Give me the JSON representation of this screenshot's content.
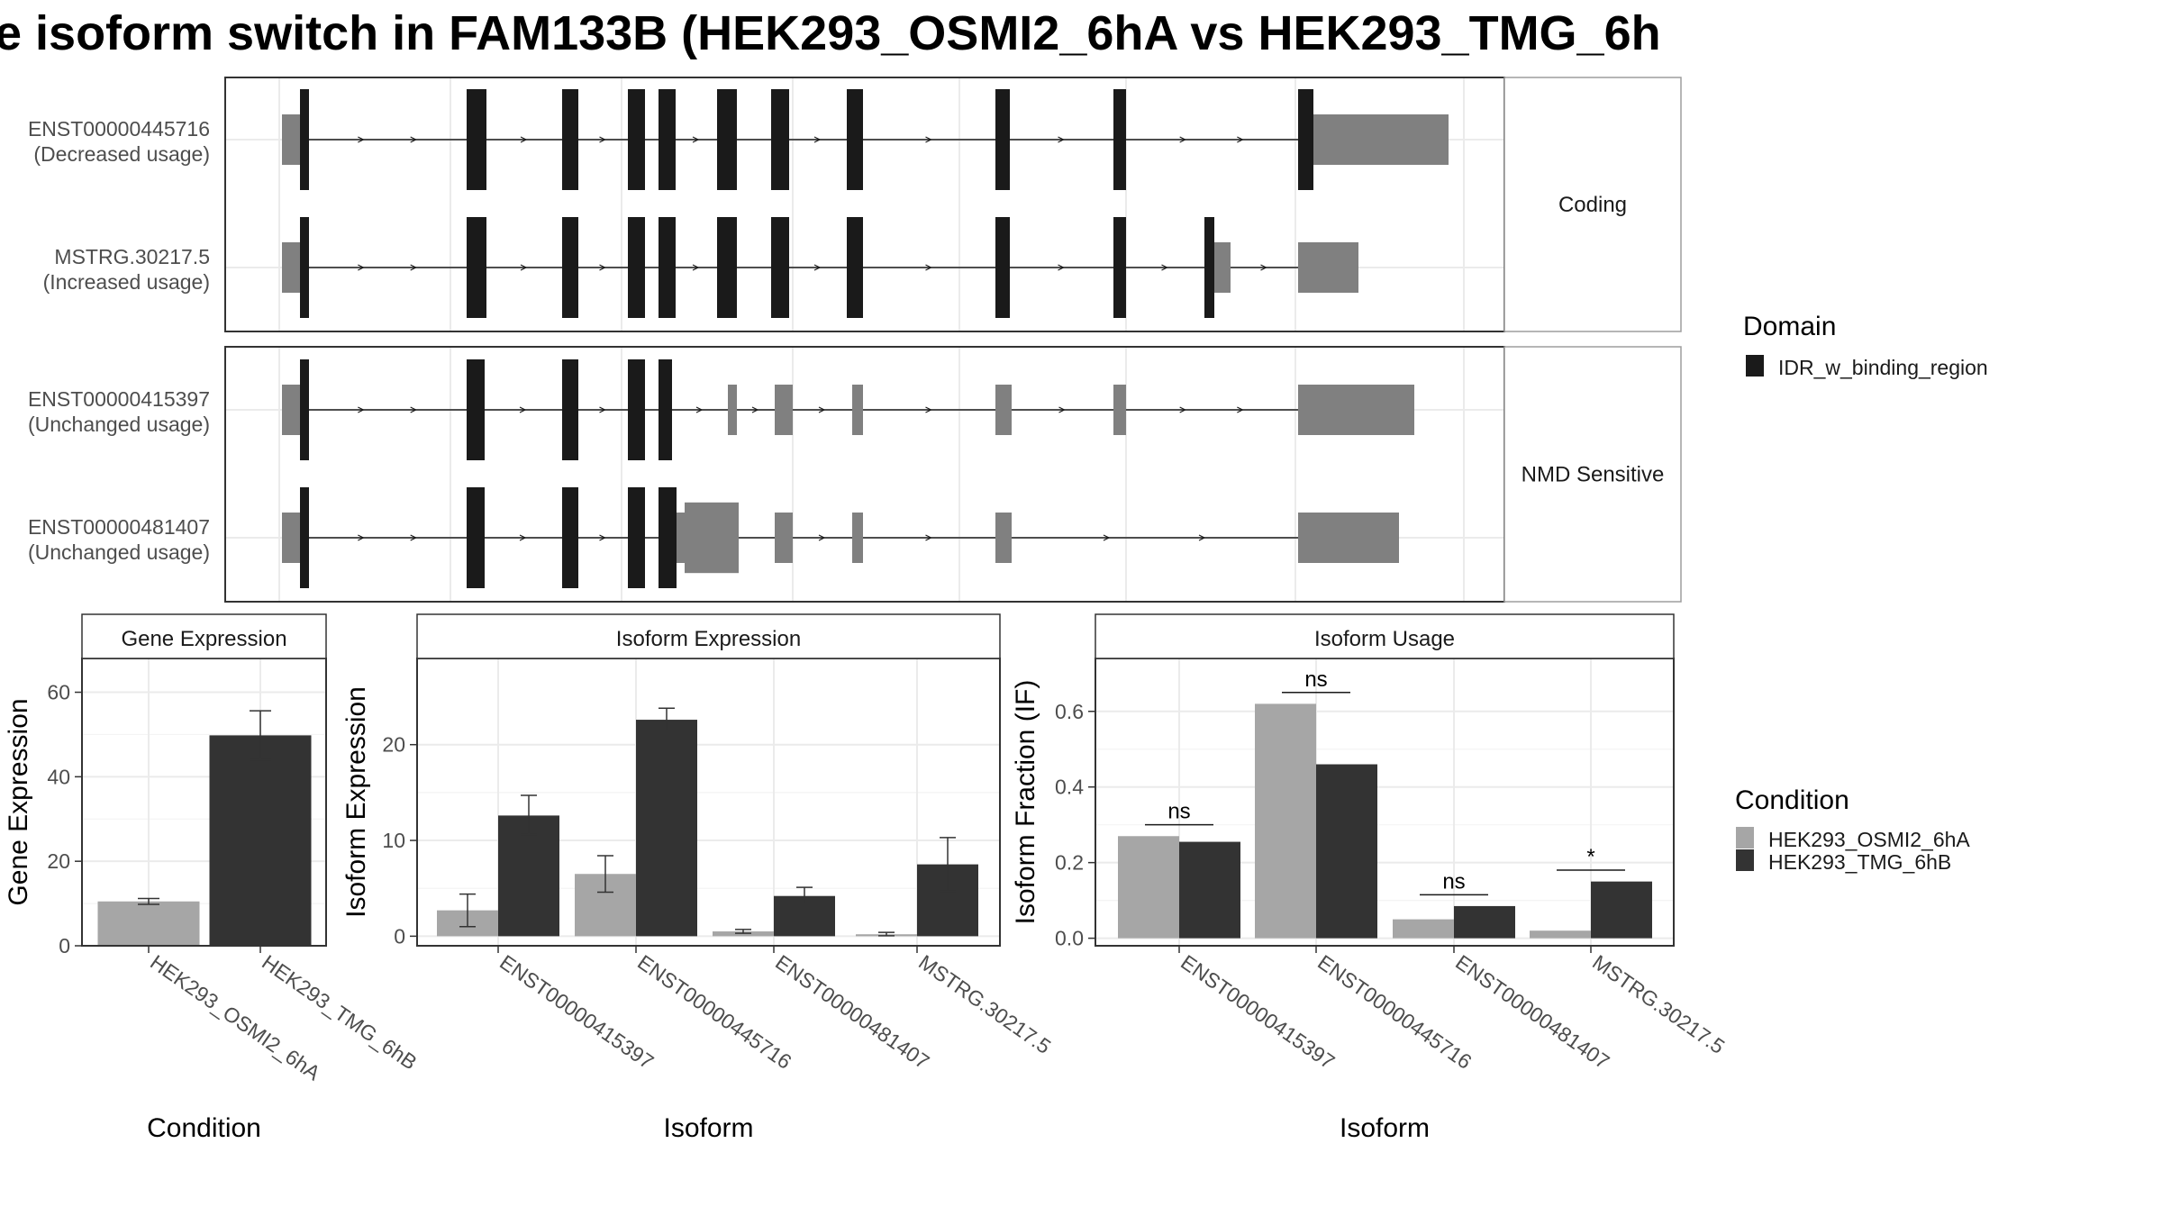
{
  "title": "e isoform switch in FAM133B (HEK293_OSMI2_6hA vs HEK293_TMG_6h",
  "colors": {
    "exon_utr": "#808080",
    "domain": "#1a1a1a",
    "cond_a": "#a6a6a6",
    "cond_b": "#333333",
    "grid": "#ebebeb",
    "panel_border": "#333333",
    "strip_border": "#9e9e9e"
  },
  "structure_panels": [
    {
      "facet": "Coding",
      "isoforms": [
        {
          "id": "ENST00000445716",
          "usage": "(Decreased usage)"
        },
        {
          "id": "MSTRG.30217.5",
          "usage": "(Increased usage)"
        }
      ]
    },
    {
      "facet": "NMD Sensitive",
      "isoforms": [
        {
          "id": "ENST00000415397",
          "usage": "(Unchanged usage)"
        },
        {
          "id": "ENST00000481407",
          "usage": "(Unchanged usage)"
        }
      ]
    }
  ],
  "domain_legend": {
    "title": "Domain",
    "items": [
      {
        "label": "IDR_w_binding_region",
        "color": "#1a1a1a"
      }
    ]
  },
  "condition_legend": {
    "title": "Condition",
    "items": [
      {
        "label": "HEK293_OSMI2_6hA",
        "color": "#a6a6a6"
      },
      {
        "label": "HEK293_TMG_6hB",
        "color": "#333333"
      }
    ]
  },
  "chart_data": [
    {
      "type": "bar",
      "strip": "Gene Expression",
      "xlabel": "Condition",
      "ylabel": "Gene Expression",
      "ylim": [
        0,
        68
      ],
      "yticks": [
        0,
        20,
        40,
        60
      ],
      "categories": [
        "HEK293_OSMI2_6hA",
        "HEK293_TMG_6hB"
      ],
      "values": [
        10.5,
        49.8
      ],
      "errors": [
        [
          9.8,
          11.2
        ],
        [
          44.0,
          55.6
        ]
      ],
      "colors": [
        "#a6a6a6",
        "#333333"
      ]
    },
    {
      "type": "bar",
      "strip": "Isoform Expression",
      "xlabel": "Isoform",
      "ylabel": "Isoform Expression",
      "ylim": [
        -1,
        29
      ],
      "yticks": [
        0,
        10,
        20
      ],
      "categories": [
        "ENST00000415397",
        "ENST00000445716",
        "ENST00000481407",
        "MSTRG.30217.5"
      ],
      "series": [
        {
          "name": "HEK293_OSMI2_6hA",
          "values": [
            2.7,
            6.5,
            0.5,
            0.2
          ],
          "errors": [
            [
              1.0,
              4.4
            ],
            [
              4.6,
              8.4
            ],
            [
              0.3,
              0.7
            ],
            [
              0.05,
              0.4
            ]
          ]
        },
        {
          "name": "HEK293_TMG_6hB",
          "values": [
            12.6,
            22.6,
            4.2,
            7.5
          ],
          "errors": [
            [
              10.6,
              14.7
            ],
            [
              21.5,
              23.8
            ],
            [
              3.3,
              5.1
            ],
            [
              4.7,
              10.3
            ]
          ]
        }
      ]
    },
    {
      "type": "bar",
      "strip": "Isoform Usage",
      "xlabel": "Isoform",
      "ylabel": "Isoform Fraction (IF)",
      "ylim": [
        -0.02,
        0.74
      ],
      "yticks": [
        0.0,
        0.2,
        0.4,
        0.6
      ],
      "categories": [
        "ENST00000415397",
        "ENST00000445716",
        "ENST00000481407",
        "MSTRG.30217.5"
      ],
      "series": [
        {
          "name": "HEK293_OSMI2_6hA",
          "values": [
            0.27,
            0.62,
            0.05,
            0.02
          ]
        },
        {
          "name": "HEK293_TMG_6hB",
          "values": [
            0.255,
            0.46,
            0.085,
            0.15
          ]
        }
      ],
      "significance": [
        {
          "label": "ns",
          "y": 0.3
        },
        {
          "label": "ns",
          "y": 0.65
        },
        {
          "label": "ns",
          "y": 0.115
        },
        {
          "label": "*",
          "y": 0.18
        }
      ]
    }
  ]
}
